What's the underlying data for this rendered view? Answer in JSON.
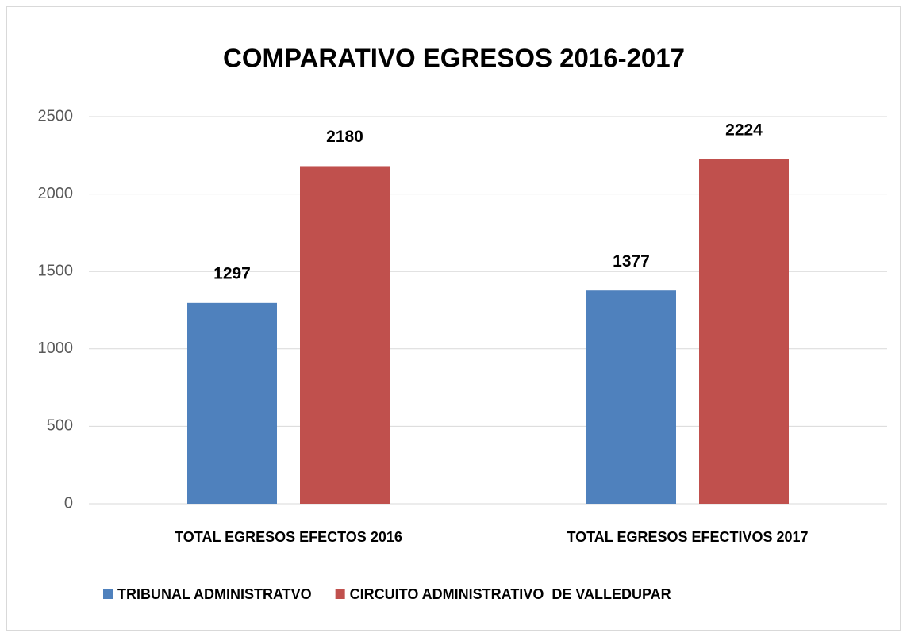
{
  "chart_data": {
    "type": "bar",
    "title": "COMPARATIVO EGRESOS 2016-2017",
    "categories": [
      "TOTAL EGRESOS EFECTOS 2016",
      "TOTAL EGRESOS EFECTIVOS 2017"
    ],
    "series": [
      {
        "name": "TRIBUNAL ADMINISTRATVO",
        "color": "#4f81bd",
        "values": [
          1297,
          1377
        ]
      },
      {
        "name": "CIRCUITO ADMINISTRATIVO  DE VALLEDUPAR",
        "color": "#c0504d",
        "values": [
          2180,
          2224
        ]
      }
    ],
    "ylim": [
      0,
      2500
    ],
    "yticks": [
      0,
      500,
      1000,
      1500,
      2000,
      2500
    ],
    "grid": true,
    "legend": "bottom"
  }
}
